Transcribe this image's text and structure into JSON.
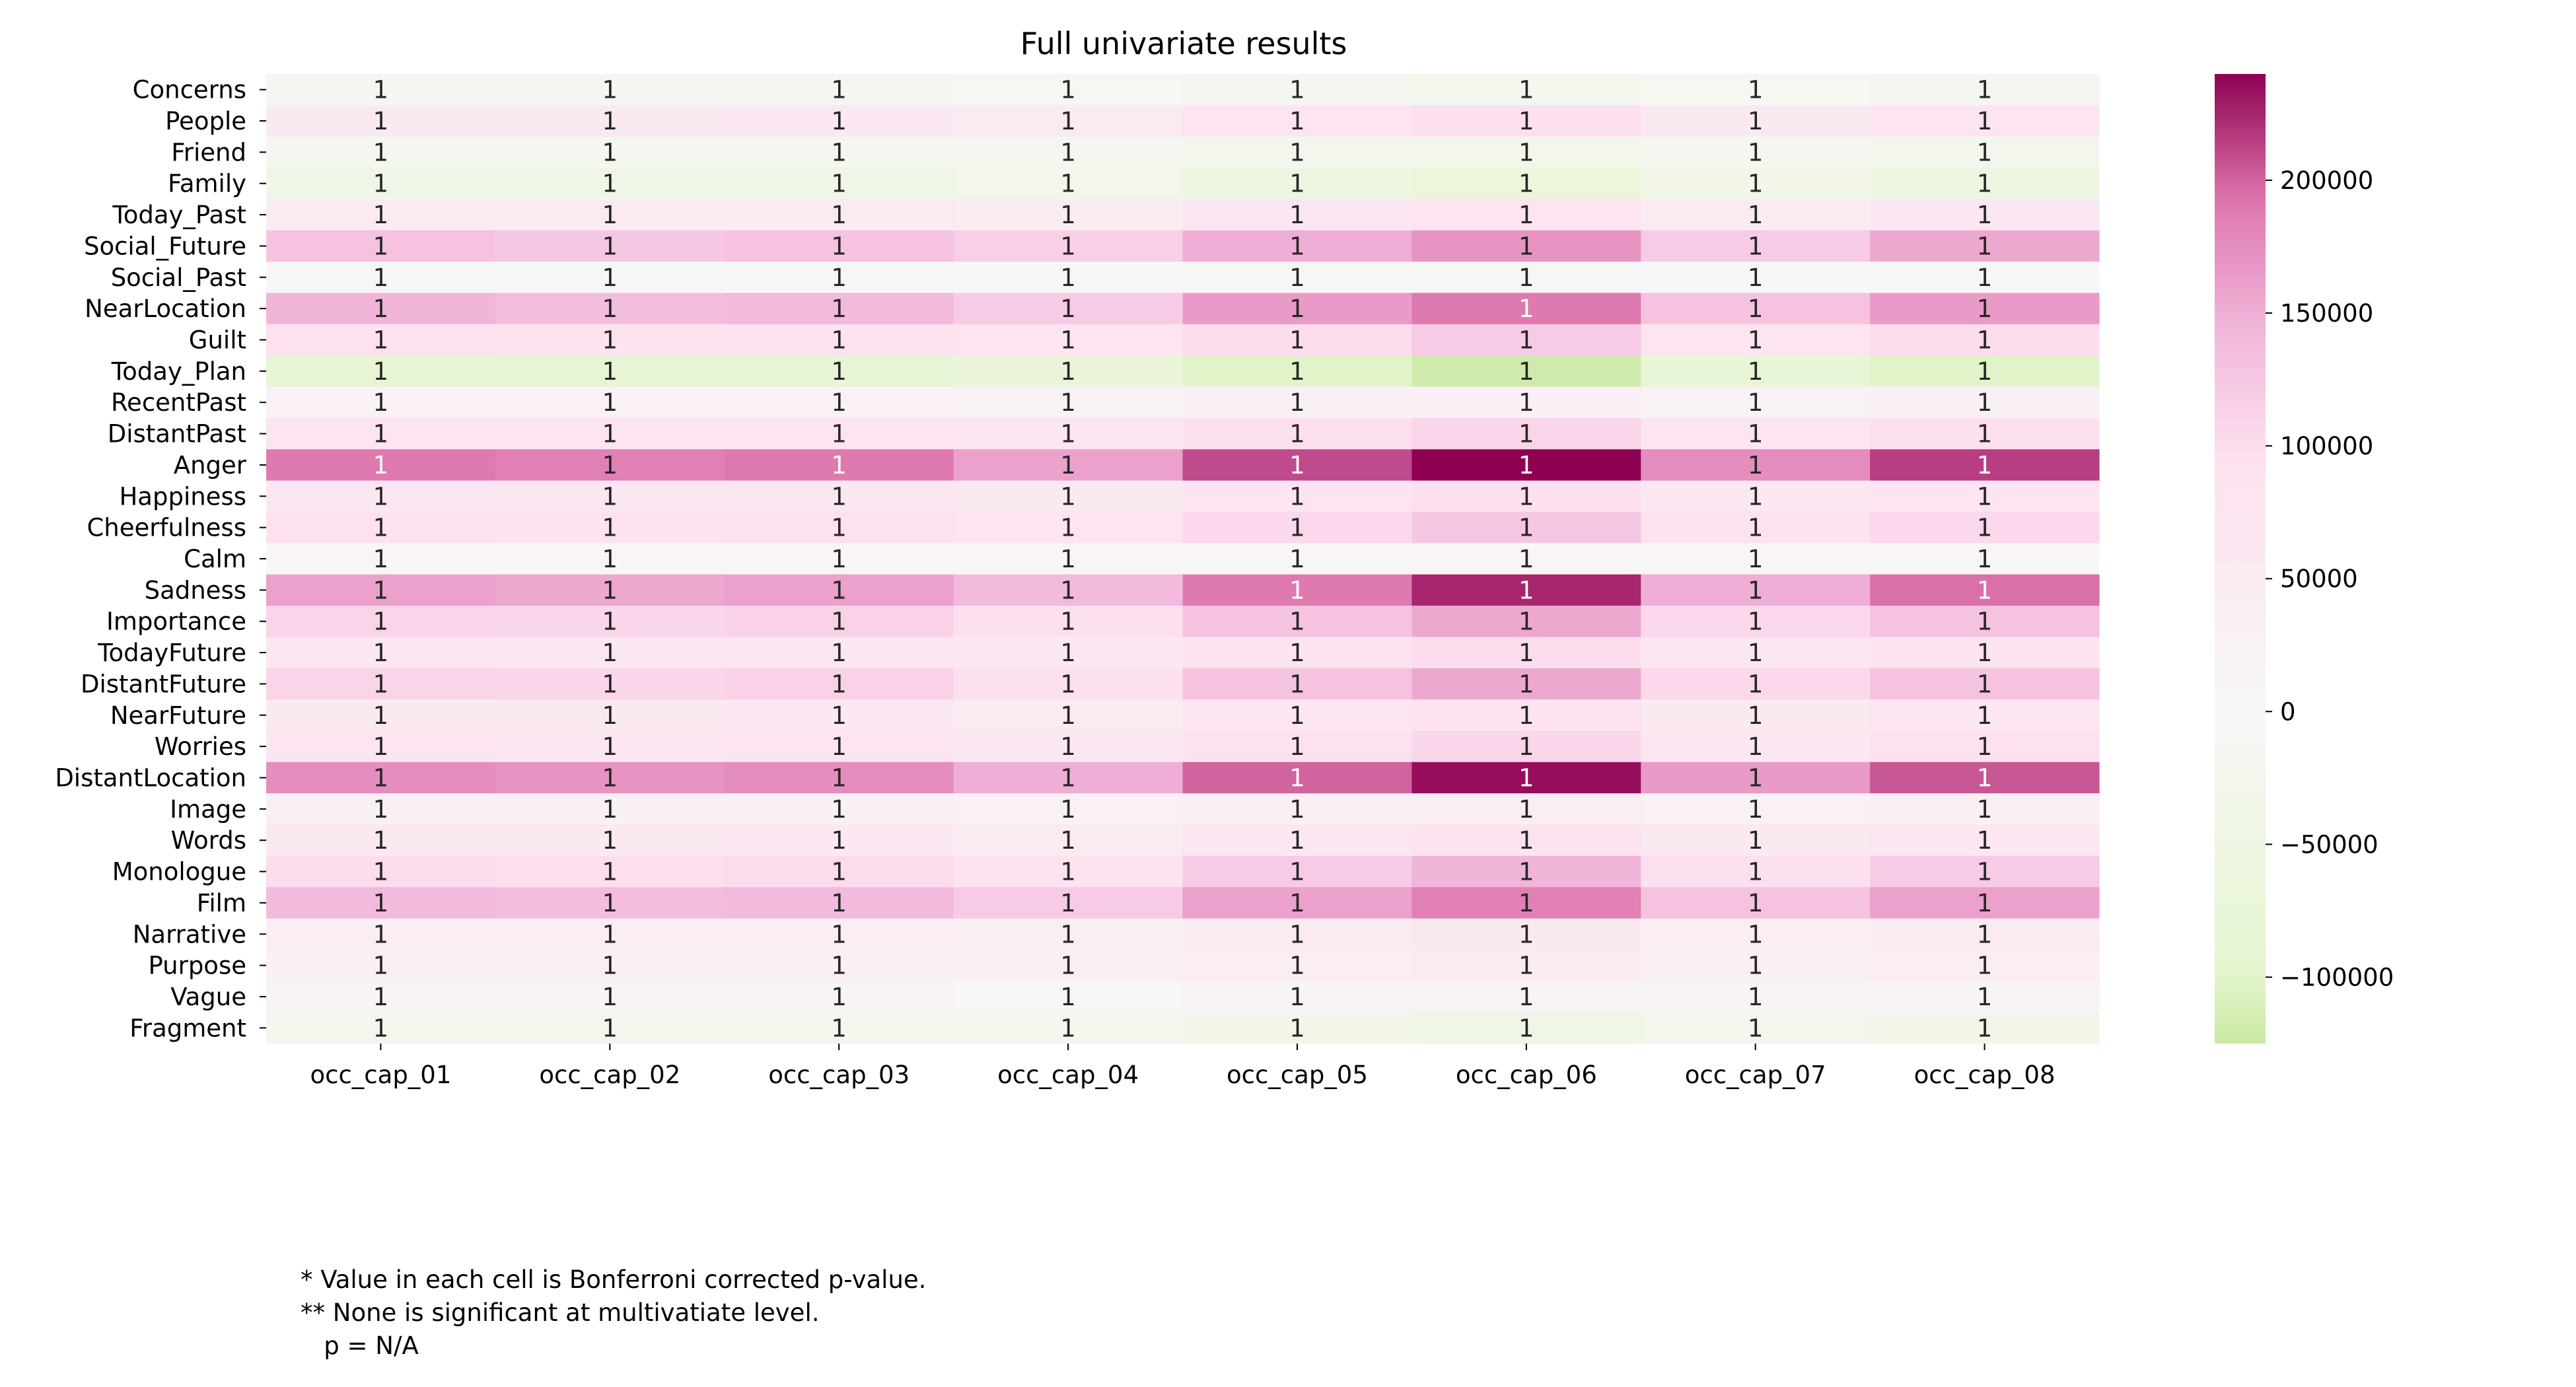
{
  "chart_data": {
    "type": "heatmap",
    "title": "Full univariate results",
    "columns": [
      "occ_cap_01",
      "occ_cap_02",
      "occ_cap_03",
      "occ_cap_04",
      "occ_cap_05",
      "occ_cap_06",
      "occ_cap_07",
      "occ_cap_08"
    ],
    "rows": [
      "Concerns",
      "People",
      "Friend",
      "Family",
      "Today_Past",
      "Social_Future",
      "Social_Past",
      "NearLocation",
      "Guilt",
      "Today_Plan",
      "RecentPast",
      "DistantPast",
      "Anger",
      "Happiness",
      "Cheerfulness",
      "Calm",
      "Sadness",
      "Importance",
      "TodayFuture",
      "DistantFuture",
      "NearFuture",
      "Worries",
      "DistantLocation",
      "Image",
      "Words",
      "Monologue",
      "Film",
      "Narrative",
      "Purpose",
      "Vague",
      "Fragment"
    ],
    "values": [
      [
        -15000,
        -15000,
        -15000,
        -12000,
        -18000,
        -22000,
        -14000,
        -18000
      ],
      [
        60000,
        58000,
        62000,
        55000,
        78000,
        95000,
        58000,
        75000
      ],
      [
        -20000,
        -20000,
        -20000,
        -15000,
        -25000,
        -30000,
        -18000,
        -25000
      ],
      [
        -40000,
        -40000,
        -40000,
        -30000,
        -55000,
        -70000,
        -35000,
        -55000
      ],
      [
        52000,
        52000,
        55000,
        48000,
        65000,
        80000,
        52000,
        65000
      ],
      [
        130000,
        125000,
        130000,
        115000,
        150000,
        170000,
        120000,
        155000
      ],
      [
        5000,
        5000,
        5000,
        5000,
        5000,
        5000,
        5000,
        5000
      ],
      [
        145000,
        135000,
        140000,
        120000,
        165000,
        190000,
        130000,
        165000
      ],
      [
        90000,
        85000,
        88000,
        75000,
        100000,
        120000,
        80000,
        100000
      ],
      [
        -85000,
        -85000,
        -85000,
        -75000,
        -100000,
        -120000,
        -80000,
        -100000
      ],
      [
        25000,
        25000,
        25000,
        22000,
        30000,
        35000,
        22000,
        30000
      ],
      [
        80000,
        78000,
        80000,
        70000,
        95000,
        110000,
        75000,
        95000
      ],
      [
        190000,
        185000,
        190000,
        160000,
        210000,
        240000,
        175000,
        215000
      ],
      [
        65000,
        65000,
        68000,
        58000,
        80000,
        95000,
        62000,
        80000
      ],
      [
        90000,
        88000,
        92000,
        78000,
        105000,
        125000,
        85000,
        105000
      ],
      [
        8000,
        8000,
        8000,
        8000,
        8000,
        8000,
        8000,
        8000
      ],
      [
        160000,
        155000,
        160000,
        140000,
        190000,
        225000,
        150000,
        195000
      ],
      [
        110000,
        108000,
        112000,
        95000,
        130000,
        155000,
        105000,
        130000
      ],
      [
        70000,
        68000,
        72000,
        62000,
        85000,
        100000,
        68000,
        85000
      ],
      [
        110000,
        108000,
        112000,
        95000,
        130000,
        155000,
        105000,
        130000
      ],
      [
        60000,
        58000,
        62000,
        52000,
        72000,
        88000,
        58000,
        72000
      ],
      [
        75000,
        72000,
        78000,
        65000,
        90000,
        108000,
        72000,
        90000
      ],
      [
        175000,
        170000,
        175000,
        150000,
        200000,
        235000,
        165000,
        205000
      ],
      [
        28000,
        28000,
        28000,
        25000,
        35000,
        40000,
        26000,
        35000
      ],
      [
        60000,
        58000,
        62000,
        52000,
        72000,
        88000,
        58000,
        72000
      ],
      [
        100000,
        98000,
        102000,
        88000,
        120000,
        145000,
        95000,
        120000
      ],
      [
        140000,
        135000,
        140000,
        120000,
        160000,
        185000,
        130000,
        160000
      ],
      [
        42000,
        42000,
        42000,
        38000,
        50000,
        60000,
        40000,
        50000
      ],
      [
        35000,
        35000,
        35000,
        32000,
        42000,
        50000,
        34000,
        42000
      ],
      [
        12000,
        12000,
        12000,
        10000,
        14000,
        16000,
        11000,
        14000
      ],
      [
        -28000,
        -28000,
        -28000,
        -24000,
        -35000,
        -45000,
        -26000,
        -35000
      ]
    ],
    "annotation": "1",
    "colormap": "PiYG_r",
    "vmin": -125000,
    "vmax": 240000,
    "colorbar_ticks": [
      200000,
      150000,
      100000,
      50000,
      0,
      -50000,
      -100000
    ],
    "colorbar_tick_labels": [
      "200000",
      "150000",
      "100000",
      "50000",
      "0",
      "−50000",
      "−100000"
    ]
  },
  "notes": [
    "* Value in each cell is Bonferroni corrected p-value.",
    "** None is significant at multivatiate level.",
    "   p = N/A"
  ]
}
